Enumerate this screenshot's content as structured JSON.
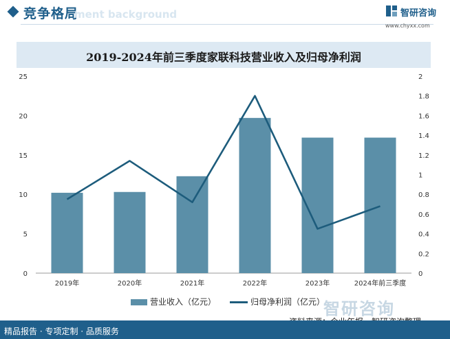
{
  "header": {
    "section_title": "竞争格局",
    "background_text": "ment background"
  },
  "brand": {
    "name": "智研咨询",
    "url": "www.chyxx.com",
    "watermark": "智研咨询"
  },
  "footer": {
    "left_text": "精品报告 · 专项定制 · 品质服务",
    "source_text": "资料来源：企业年报，智研咨询整理"
  },
  "colors": {
    "brand": "#1f5f8b",
    "bar": "#5b8fa8",
    "line": "#1d5c7c",
    "title_bg": "#dde9f3"
  },
  "chart_data": {
    "type": "bar",
    "title": "2019-2024年前三季度家联科技营业收入及归母净利润",
    "categories": [
      "2019年",
      "2020年",
      "2021年",
      "2022年",
      "2023年",
      "2024年前三季度"
    ],
    "series": [
      {
        "name": "营业收入（亿元）",
        "type": "bar",
        "axis": "left",
        "values": [
          10.2,
          10.3,
          12.3,
          19.7,
          17.2,
          17.2
        ]
      },
      {
        "name": "归母净利润（亿元）",
        "type": "line",
        "axis": "right",
        "values": [
          0.75,
          1.14,
          0.72,
          1.8,
          0.45,
          0.68
        ]
      }
    ],
    "y_left": {
      "min": 0,
      "max": 25,
      "ticks": [
        0,
        5,
        10,
        15,
        20,
        25
      ]
    },
    "y_right": {
      "min": 0,
      "max": 2,
      "ticks": [
        "0",
        "0.2",
        "0.4",
        "0.6",
        "0.8",
        "1",
        "1.2",
        "1.4",
        "1.6",
        "1.8",
        "2"
      ]
    },
    "legend_position": "bottom",
    "grid": false
  }
}
